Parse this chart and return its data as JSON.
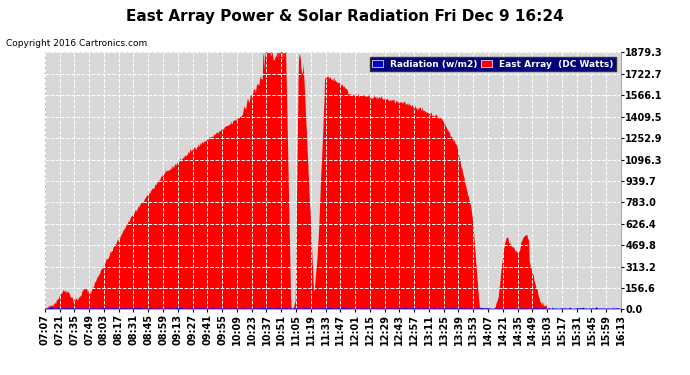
{
  "title": "East Array Power & Solar Radiation Fri Dec 9 16:24",
  "copyright": "Copyright 2016 Cartronics.com",
  "legend_labels": [
    "Radiation (w/m2)",
    "East Array  (DC Watts)"
  ],
  "yticks": [
    0.0,
    156.6,
    313.2,
    469.8,
    626.4,
    783.0,
    939.7,
    1096.3,
    1252.9,
    1409.5,
    1566.1,
    1722.7,
    1879.3
  ],
  "ymax": 1879.3,
  "ymin": 0.0,
  "bg_color": "#ffffff",
  "plot_bg_color": "#d8d8d8",
  "grid_color": "#ffffff",
  "fill_color": "#ff0000",
  "line_color": "#0000ff",
  "title_fontsize": 11,
  "tick_fontsize": 7,
  "xtick_labels": [
    "07:07",
    "07:21",
    "07:35",
    "07:49",
    "08:03",
    "08:17",
    "08:31",
    "08:45",
    "08:59",
    "09:13",
    "09:27",
    "09:41",
    "09:55",
    "10:09",
    "10:23",
    "10:37",
    "10:51",
    "11:05",
    "11:19",
    "11:33",
    "11:47",
    "12:01",
    "12:15",
    "12:29",
    "12:43",
    "12:57",
    "13:11",
    "13:25",
    "13:39",
    "13:53",
    "14:07",
    "14:21",
    "14:35",
    "14:49",
    "15:03",
    "15:17",
    "15:31",
    "15:45",
    "15:59",
    "16:13"
  ]
}
